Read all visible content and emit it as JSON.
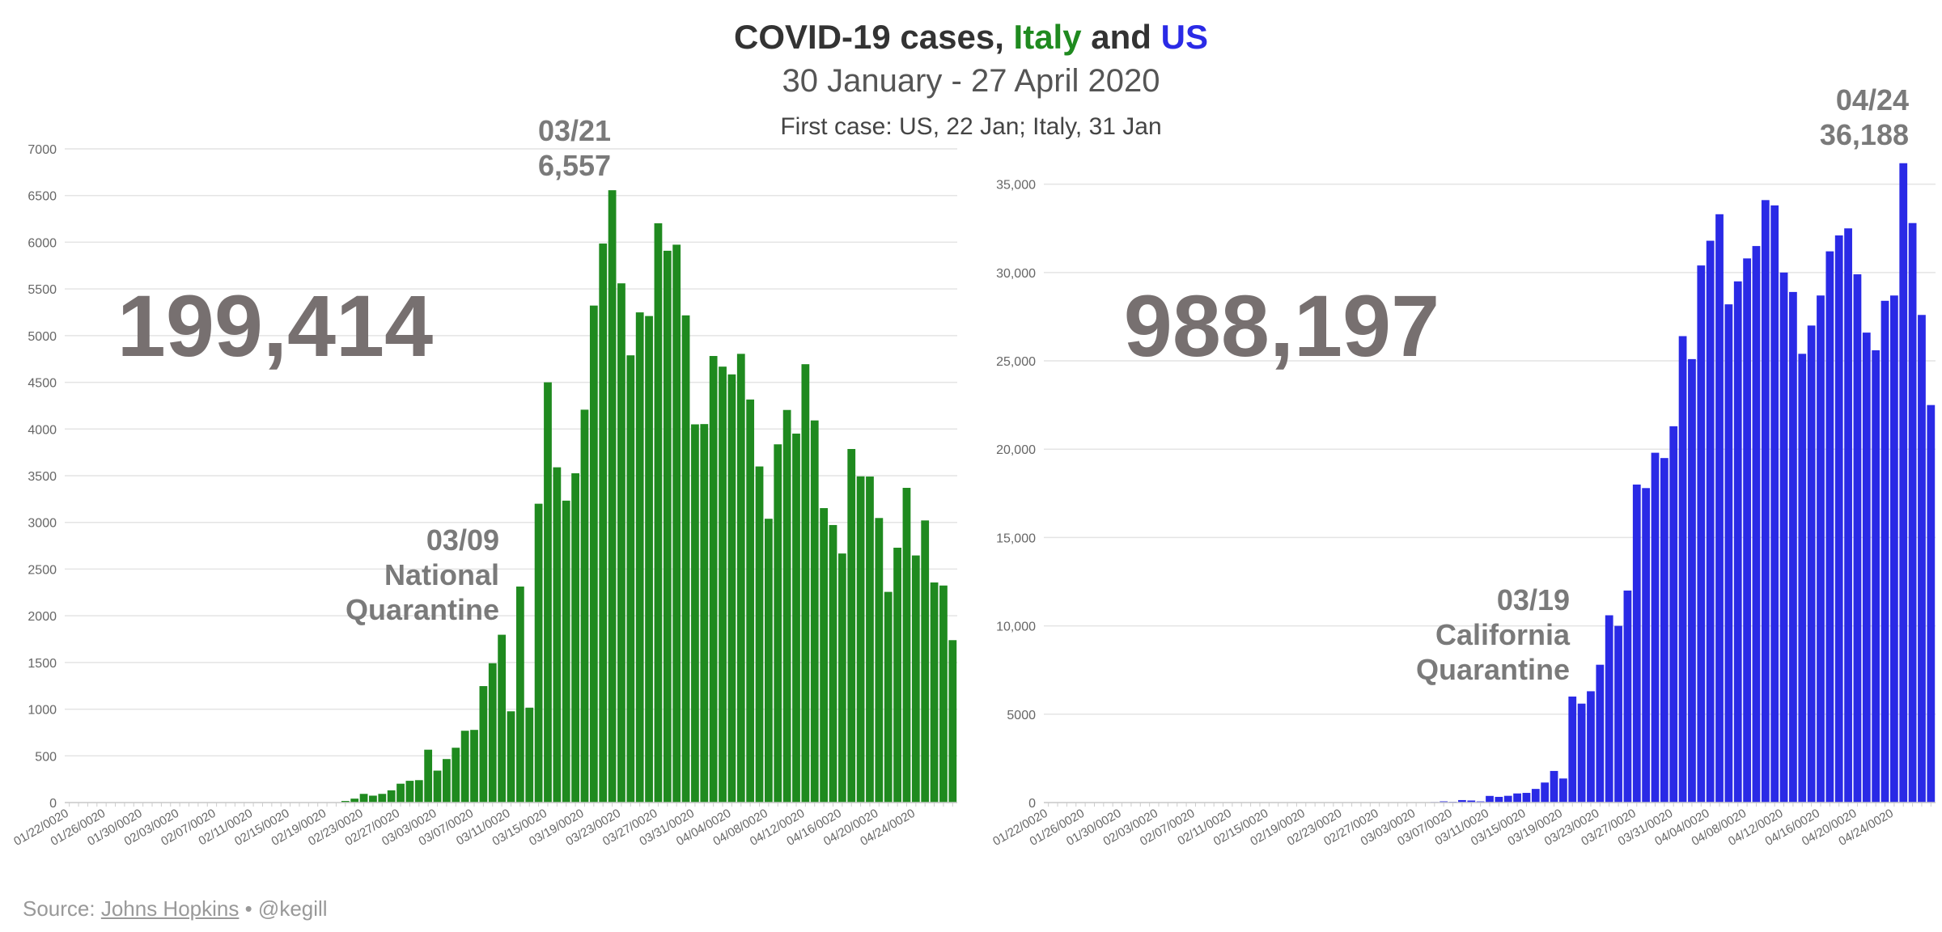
{
  "header": {
    "title_parts": [
      "COVID-19 cases, ",
      "Italy",
      " and ",
      "US"
    ],
    "subtitle": "30 January - 27 April 2020",
    "note": "First case: US, 22 Jan; Italy, 31 Jan"
  },
  "footer": {
    "prefix": "Source: ",
    "link": "Johns Hopkins",
    "suffix": " • @kegill"
  },
  "chart_data": [
    {
      "type": "bar",
      "total": "199,414",
      "annotations": [
        [
          "03/09",
          "National",
          "Quarantine"
        ],
        [
          "03/21",
          "6,557"
        ]
      ],
      "categories": [
        "01/22/0020",
        null,
        null,
        null,
        "01/26/0020",
        null,
        null,
        null,
        "01/30/0020",
        null,
        null,
        null,
        "02/03/0020",
        null,
        null,
        null,
        "02/07/0020",
        null,
        null,
        null,
        "02/11/0020",
        null,
        null,
        null,
        "02/15/0020",
        null,
        null,
        null,
        "02/19/0020",
        null,
        null,
        null,
        "02/23/0020",
        null,
        null,
        null,
        "02/27/0020",
        null,
        null,
        null,
        "03/03/0020",
        null,
        null,
        null,
        "03/07/0020",
        null,
        null,
        null,
        "03/11/0020",
        null,
        null,
        null,
        "03/15/0020",
        null,
        null,
        null,
        "03/19/0020",
        null,
        null,
        null,
        "03/23/0020",
        null,
        null,
        null,
        "03/27/0020",
        null,
        null,
        null,
        "03/31/0020",
        null,
        null,
        null,
        "04/04/0020",
        null,
        null,
        null,
        "04/08/0020",
        null,
        null,
        null,
        "04/12/0020",
        null,
        null,
        null,
        "04/16/0020",
        null,
        null,
        null,
        "04/20/0020",
        null,
        null,
        null,
        "04/24/0020",
        null,
        null,
        null,
        null
      ],
      "series": [
        {
          "name": "Italy",
          "color": "#1f8a1f",
          "values": [
            0,
            0,
            0,
            0,
            0,
            0,
            0,
            0,
            0,
            2,
            0,
            0,
            0,
            0,
            0,
            0,
            1,
            0,
            0,
            0,
            0,
            0,
            0,
            0,
            0,
            0,
            0,
            0,
            0,
            0,
            17,
            42,
            93,
            74,
            93,
            131,
            202,
            233,
            240,
            566,
            342,
            466,
            587,
            769,
            778,
            1247,
            1492,
            1797,
            977,
            2313,
            1016,
            3200,
            4500,
            3590,
            3233,
            3526,
            4207,
            5322,
            5986,
            6557,
            5560,
            4789,
            5249,
            5210,
            6203,
            5909,
            5974,
            5217,
            4050,
            4053,
            4782,
            4668,
            4585,
            4805,
            4316,
            3599,
            3039,
            3836,
            4204,
            3951,
            4694,
            4092,
            3153,
            2972,
            2667,
            3786,
            3493,
            3491,
            3047,
            2256,
            2729,
            3370,
            2646,
            3021,
            2357,
            2324,
            1739
          ]
        }
      ],
      "ylim": [
        0,
        7000
      ],
      "yticks": [
        0,
        500,
        1000,
        1500,
        2000,
        2500,
        3000,
        3500,
        4000,
        4500,
        5000,
        5500,
        6000,
        6500,
        7000
      ],
      "grid": true
    },
    {
      "type": "bar",
      "total": "988,197",
      "annotations": [
        [
          "03/19",
          "California",
          "Quarantine"
        ],
        [
          "04/24",
          "36,188"
        ]
      ],
      "categories": [
        "01/22/0020",
        null,
        null,
        null,
        "01/26/0020",
        null,
        null,
        null,
        "01/30/0020",
        null,
        null,
        null,
        "02/03/0020",
        null,
        null,
        null,
        "02/07/0020",
        null,
        null,
        null,
        "02/11/0020",
        null,
        null,
        null,
        "02/15/0020",
        null,
        null,
        null,
        "02/19/0020",
        null,
        null,
        null,
        "02/23/0020",
        null,
        null,
        null,
        "02/27/0020",
        null,
        null,
        null,
        "03/03/0020",
        null,
        null,
        null,
        "03/07/0020",
        null,
        null,
        null,
        "03/11/0020",
        null,
        null,
        null,
        "03/15/0020",
        null,
        null,
        null,
        "03/19/0020",
        null,
        null,
        null,
        "03/23/0020",
        null,
        null,
        null,
        "03/27/0020",
        null,
        null,
        null,
        "03/31/0020",
        null,
        null,
        null,
        "04/04/0020",
        null,
        null,
        null,
        "04/08/0020",
        null,
        null,
        null,
        "04/12/0020",
        null,
        null,
        null,
        "04/16/0020",
        null,
        null,
        null,
        "04/20/0020",
        null,
        null,
        null,
        "04/24/0020",
        null,
        null,
        null,
        null
      ],
      "series": [
        {
          "name": "US",
          "color": "#2a2ae6",
          "values": [
            1,
            0,
            1,
            0,
            3,
            0,
            0,
            0,
            1,
            1,
            0,
            1,
            0,
            0,
            1,
            0,
            0,
            0,
            0,
            0,
            1,
            0,
            0,
            0,
            0,
            0,
            0,
            0,
            0,
            0,
            0,
            0,
            0,
            0,
            0,
            14,
            1,
            0,
            8,
            8,
            23,
            20,
            31,
            68,
            45,
            140,
            116,
            65,
            376,
            322,
            382,
            516,
            548,
            772,
            1133,
            1789,
            1362,
            6000,
            5600,
            6300,
            7800,
            10600,
            10000,
            12000,
            18000,
            17800,
            19800,
            19500,
            21300,
            26400,
            25100,
            30400,
            31800,
            33300,
            28200,
            29500,
            30800,
            31500,
            34100,
            33800,
            30000,
            28900,
            25400,
            27000,
            28700,
            31200,
            32100,
            32500,
            29900,
            26600,
            25600,
            28400,
            28700,
            36188,
            32800,
            27600,
            22500
          ]
        }
      ],
      "ylim": [
        0,
        37000
      ],
      "yticks": [
        0,
        5000,
        {
          "value": 10000,
          "label": "10,000"
        },
        {
          "value": 15000,
          "label": "15,000"
        },
        {
          "value": 20000,
          "label": "20,000"
        },
        {
          "value": 25000,
          "label": "25,000"
        },
        {
          "value": 30000,
          "label": "30,000"
        },
        {
          "value": 35000,
          "label": "35,000"
        }
      ],
      "grid": true
    }
  ]
}
